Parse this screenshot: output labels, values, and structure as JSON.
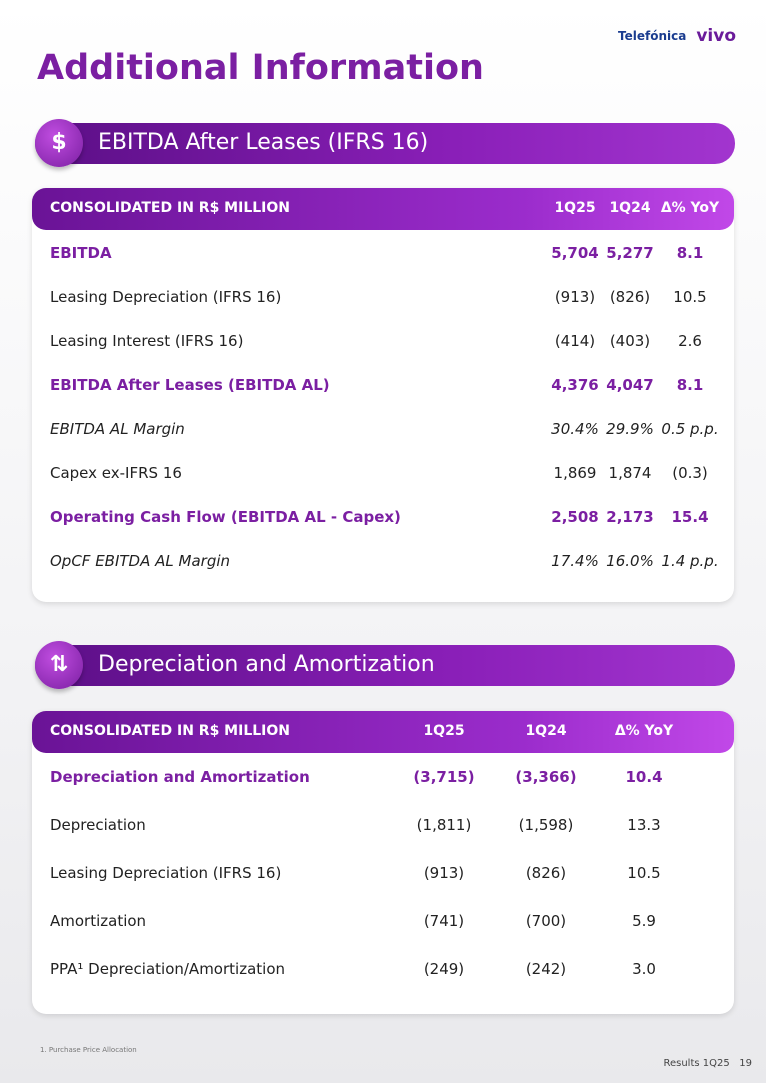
{
  "logos": [
    "Telefónica",
    "vivo"
  ],
  "title": "Additional Information",
  "sections": [
    {
      "heading": "EBITDA After Leases (IFRS 16)",
      "table": {
        "header": [
          "CONSOLIDATED IN R$ MILLION",
          "1Q25",
          "1Q24",
          "Δ% YoY"
        ],
        "rows": [
          {
            "style": "bold",
            "cells": [
              "EBITDA",
              "5,704",
              "5,277",
              "8.1"
            ]
          },
          {
            "style": "normal",
            "cells": [
              "Leasing Depreciation (IFRS 16)",
              "(913)",
              "(826)",
              "10.5"
            ]
          },
          {
            "style": "normal",
            "cells": [
              "Leasing Interest (IFRS 16)",
              "(414)",
              "(403)",
              "2.6"
            ]
          },
          {
            "style": "bold",
            "cells": [
              "EBITDA After Leases (EBITDA AL)",
              "4,376",
              "4,047",
              "8.1"
            ]
          },
          {
            "style": "italic",
            "cells": [
              "EBITDA AL Margin",
              "30.4%",
              "29.9%",
              "0.5 p.p."
            ]
          },
          {
            "style": "normal",
            "cells": [
              "Capex ex-IFRS 16",
              "1,869",
              "1,874",
              "(0.3)"
            ]
          },
          {
            "style": "bold",
            "cells": [
              "Operating Cash Flow (EBITDA AL - Capex)",
              "2,508",
              "2,173",
              "15.4"
            ]
          },
          {
            "style": "italic",
            "cells": [
              "OpCF EBITDA AL Margin",
              "17.4%",
              "16.0%",
              "1.4 p.p."
            ]
          }
        ]
      }
    },
    {
      "heading": "Depreciation and Amortization",
      "table": {
        "header": [
          "CONSOLIDATED IN R$ MILLION",
          "1Q25",
          "1Q24",
          "Δ% YoY"
        ],
        "rows": [
          {
            "style": "bold",
            "cells": [
              "Depreciation and Amortization",
              "(3,715)",
              "(3,366)",
              "10.4"
            ]
          },
          {
            "style": "normal",
            "cells": [
              "Depreciation",
              "(1,811)",
              "(1,598)",
              "13.3"
            ]
          },
          {
            "style": "normal",
            "cells": [
              "Leasing Depreciation (IFRS 16)",
              "(913)",
              "(826)",
              "10.5"
            ]
          },
          {
            "style": "normal",
            "cells": [
              "Amortization",
              "(741)",
              "(700)",
              "5.9"
            ]
          },
          {
            "style": "normal",
            "cells": [
              "PPA¹ Depreciation/Amortization",
              "(249)",
              "(242)",
              "3.0"
            ]
          }
        ]
      }
    }
  ],
  "footnote": {
    "marker": "1.",
    "text": "Purchase Price Allocation"
  },
  "footer": {
    "label": "Results 1Q25",
    "page": "19"
  }
}
